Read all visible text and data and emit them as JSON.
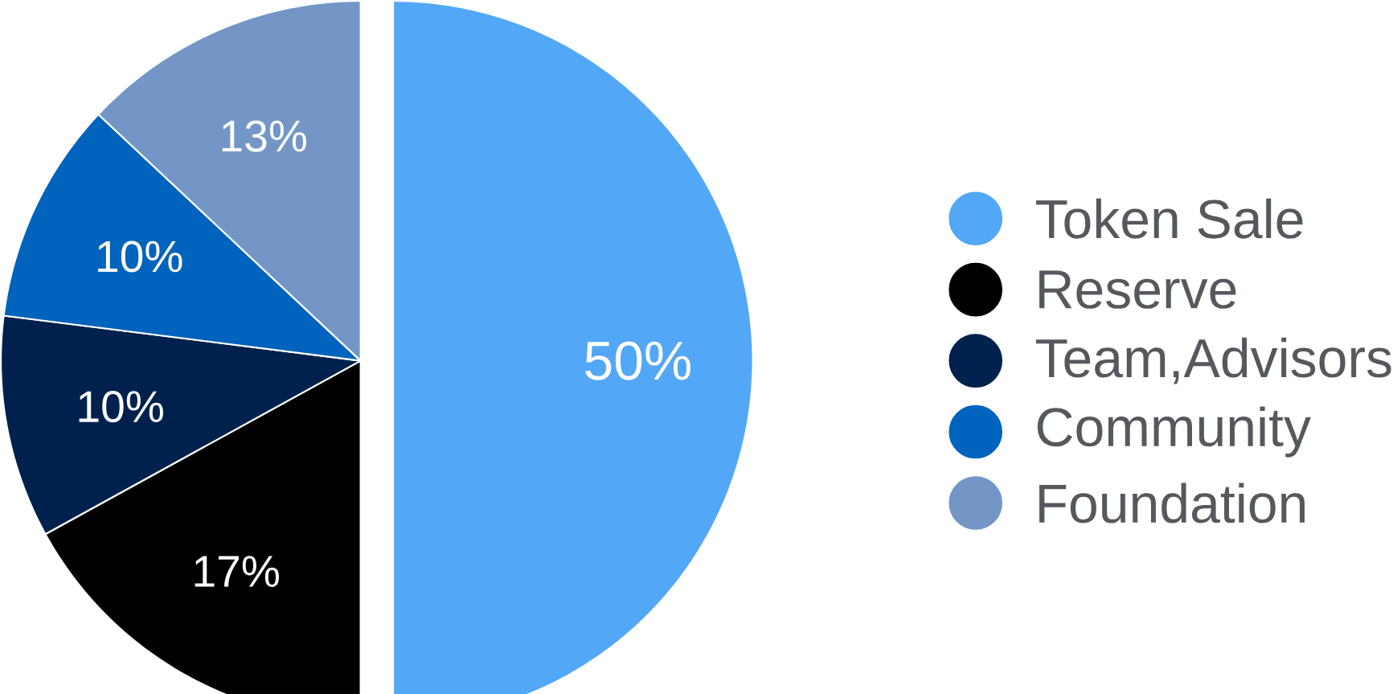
{
  "chart_data": {
    "type": "pie",
    "categories": [
      "Token Sale",
      "Reserve",
      "Team,Advisors",
      "Community",
      "Foundation"
    ],
    "values": [
      50,
      17,
      10,
      10,
      13
    ],
    "value_labels": [
      "50%",
      "17%",
      "10%",
      "10%",
      "13%"
    ],
    "colors": [
      "#52a7f7",
      "#000000",
      "#00214d",
      "#0063bd",
      "#7396c7"
    ],
    "legend": "right"
  }
}
